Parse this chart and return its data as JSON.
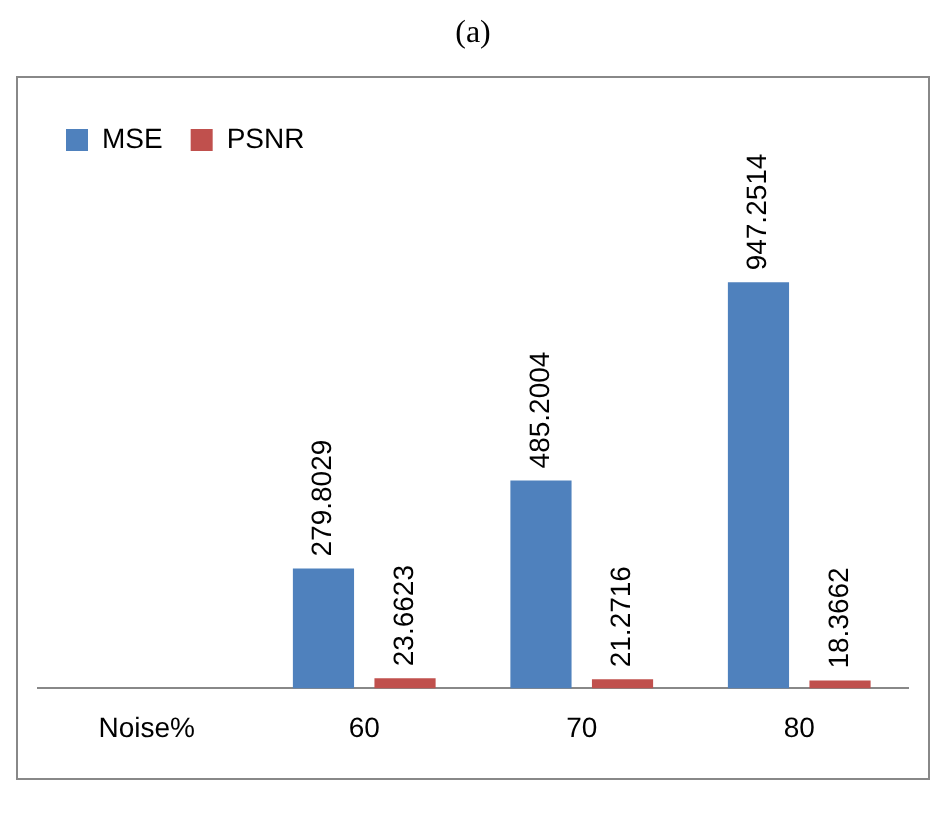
{
  "chart_data": {
    "type": "bar",
    "title": "(a)",
    "categories": [
      "Noise%",
      "60",
      "70",
      "80"
    ],
    "series": [
      {
        "name": "MSE",
        "color": "#4f81bd",
        "values": [
          null,
          279.8029,
          485.2004,
          947.2514
        ]
      },
      {
        "name": "PSNR",
        "color": "#c0504d",
        "values": [
          null,
          23.6623,
          21.2716,
          18.3662
        ]
      }
    ],
    "data_labels": true,
    "legend": "top left",
    "grid": false
  }
}
